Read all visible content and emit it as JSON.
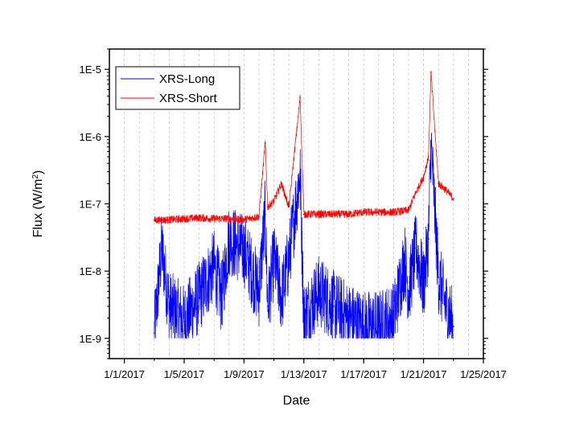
{
  "chart_data": {
    "type": "line",
    "title": "",
    "xlabel": "Date",
    "ylabel": "Flux (W/m²)",
    "ylabel_parts": {
      "main": "Flux (W/m",
      "sup": "2",
      "end": ")"
    },
    "yscale": "log",
    "ylim": [
      5e-10,
      2e-05
    ],
    "xlim": [
      "2016-12-31",
      "2017-01-25"
    ],
    "x_ticks": [
      "1/1/2017",
      "1/5/2017",
      "1/9/2017",
      "1/13/2017",
      "1/17/2017",
      "1/21/2017",
      "1/25/2017"
    ],
    "y_ticks": [
      "1E-9",
      "1E-8",
      "1E-7",
      "1E-6",
      "1E-5"
    ],
    "grid": "vertical dashed lines at each day",
    "legend_position": "top-left",
    "series": [
      {
        "name": "XRS-Long",
        "color": "#0000ff",
        "x": [
          "2017-01-03",
          "2017-01-03T12:00",
          "2017-01-04",
          "2017-01-05",
          "2017-01-06",
          "2017-01-07",
          "2017-01-07T12:00",
          "2017-01-08",
          "2017-01-09",
          "2017-01-10",
          "2017-01-10T10:00",
          "2017-01-10T14:00",
          "2017-01-11",
          "2017-01-11T12:00",
          "2017-01-12",
          "2017-01-12T18:00",
          "2017-01-13",
          "2017-01-14",
          "2017-01-15",
          "2017-01-16",
          "2017-01-17",
          "2017-01-18",
          "2017-01-19",
          "2017-01-19T18:00",
          "2017-01-20",
          "2017-01-20T12:00",
          "2017-01-21",
          "2017-01-21T08:00",
          "2017-01-21T12:00",
          "2017-01-22",
          "2017-01-22T12:00",
          "2017-01-23"
        ],
        "values": [
          1.2e-09,
          2.2e-08,
          3e-09,
          1.8e-09,
          4e-09,
          1.2e-08,
          4e-09,
          3e-08,
          2e-08,
          5e-09,
          7e-08,
          3e-09,
          1.5e-08,
          4e-09,
          1.5e-08,
          3e-07,
          2e-09,
          5e-09,
          3e-09,
          2e-09,
          1.5e-09,
          1.5e-09,
          2e-09,
          1.5e-08,
          5e-09,
          2.2e-08,
          6e-09,
          3e-08,
          8e-07,
          8e-09,
          3e-09,
          1.5e-09
        ]
      },
      {
        "name": "XRS-Short",
        "color": "#ff0000",
        "x": [
          "2017-01-03",
          "2017-01-04",
          "2017-01-05",
          "2017-01-06",
          "2017-01-07",
          "2017-01-08",
          "2017-01-09",
          "2017-01-10",
          "2017-01-10T10:00",
          "2017-01-10T14:00",
          "2017-01-11",
          "2017-01-11T12:00",
          "2017-01-12",
          "2017-01-12T18:00",
          "2017-01-13",
          "2017-01-14",
          "2017-01-15",
          "2017-01-16",
          "2017-01-17",
          "2017-01-18",
          "2017-01-19",
          "2017-01-20",
          "2017-01-20T12:00",
          "2017-01-21",
          "2017-01-21T08:00",
          "2017-01-21T12:00",
          "2017-01-22",
          "2017-01-22T12:00",
          "2017-01-23"
        ],
        "values": [
          5.7e-08,
          5.8e-08,
          6e-08,
          6.2e-08,
          6e-08,
          6e-08,
          5.8e-08,
          6.5e-08,
          8e-07,
          9e-08,
          1.1e-07,
          2e-07,
          9e-08,
          3.8e-06,
          7e-08,
          7e-08,
          7e-08,
          7e-08,
          7.5e-08,
          7.5e-08,
          7.5e-08,
          8e-08,
          1.5e-07,
          2.5e-07,
          5e-07,
          9e-06,
          2e-07,
          1.6e-07,
          1.2e-07
        ]
      }
    ]
  }
}
